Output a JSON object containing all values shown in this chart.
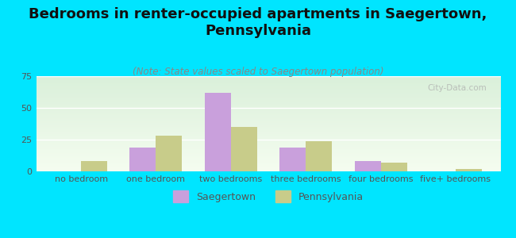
{
  "title": "Bedrooms in renter-occupied apartments in Saegertown,\nPennsylvania",
  "subtitle": "(Note: State values scaled to Saegertown population)",
  "categories": [
    "no bedroom",
    "one bedroom",
    "two bedrooms",
    "three bedrooms",
    "four bedrooms",
    "five+ bedrooms"
  ],
  "saegertown": [
    0,
    19,
    62,
    19,
    8,
    0
  ],
  "pennsylvania": [
    8,
    28,
    35,
    24,
    7,
    2
  ],
  "saegertown_color": "#c9a0dc",
  "pennsylvania_color": "#c8cc8a",
  "background_color": "#00e5ff",
  "plot_bg_top": "#e8f5e9",
  "plot_bg_bottom": "#f0f8f0",
  "ylim": [
    0,
    75
  ],
  "yticks": [
    0,
    25,
    50,
    75
  ],
  "bar_width": 0.35,
  "legend_saegertown": "Saegertown",
  "legend_pennsylvania": "Pennsylvania",
  "title_fontsize": 13,
  "subtitle_fontsize": 8.5,
  "tick_fontsize": 8,
  "legend_fontsize": 9,
  "watermark": "City-Data.com"
}
